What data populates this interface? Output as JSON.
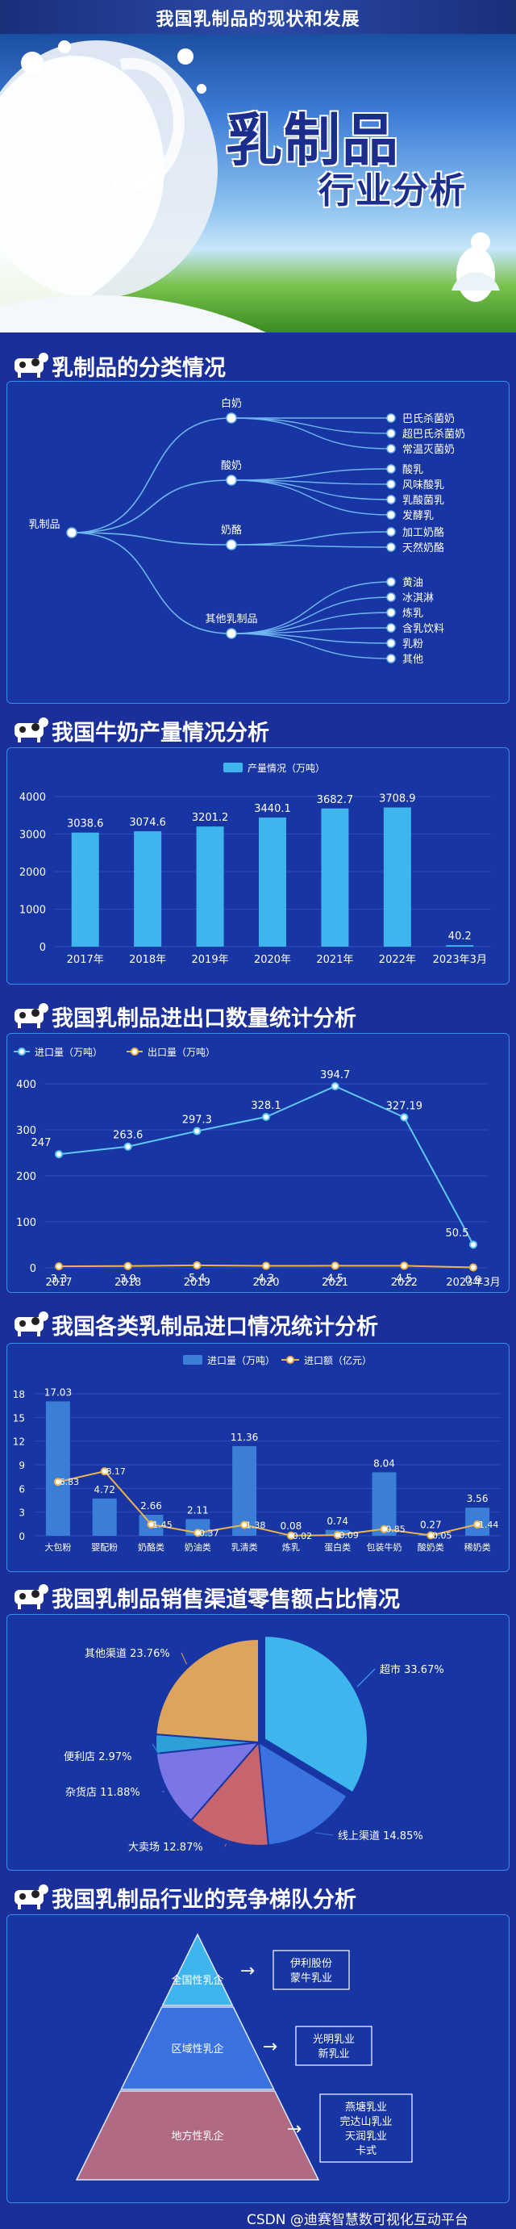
{
  "header": {
    "title": "我国乳制品的现状和发展",
    "big_title": "乳制品",
    "sub_title": "行业分析"
  },
  "sections": {
    "s1": "乳制品的分类情况",
    "s2": "我国牛奶产量情况分析",
    "s3": "我国乳制品进出口数量统计分析",
    "s4": "我国各类乳制品进口情况统计分析",
    "s5": "我国乳制品销售渠道零售额占比情况",
    "s6": "我国乳制品行业的竞争梯队分析"
  },
  "tree": {
    "root": "乳制品",
    "groups": [
      {
        "name": "白奶",
        "children": [
          "巴氏杀菌奶",
          "超巴氏杀菌奶",
          "常温灭菌奶"
        ]
      },
      {
        "name": "酸奶",
        "children": [
          "酸乳",
          "风味酸乳",
          "乳酸菌乳",
          "发酵乳"
        ]
      },
      {
        "name": "奶酪",
        "children": [
          "加工奶酪",
          "天然奶酪"
        ]
      },
      {
        "name": "其他乳制品",
        "children": [
          "黄油",
          "冰淇淋",
          "炼乳",
          "含乳饮料",
          "乳粉",
          "其他"
        ]
      }
    ]
  },
  "chart_data": [
    {
      "type": "bar",
      "legend": [
        "产量情况（万吨）"
      ],
      "categories": [
        "2017年",
        "2018年",
        "2019年",
        "2020年",
        "2021年",
        "2022年",
        "2023年3月"
      ],
      "values": [
        3038.6,
        3074.6,
        3201.2,
        3440.1,
        3682.7,
        3708.9,
        40.2
      ],
      "ylim": [
        0,
        4000
      ],
      "yticks": [
        0,
        1000,
        2000,
        3000,
        4000
      ],
      "colors": {
        "bar": "#3fb5ee"
      }
    },
    {
      "type": "line",
      "categories": [
        "2017",
        "2018",
        "2019",
        "2020",
        "2021",
        "2022",
        "2023年3月"
      ],
      "series": [
        {
          "name": "进口量（万吨）",
          "values": [
            247,
            263.6,
            297.3,
            328.1,
            394.7,
            327.19,
            50.5
          ],
          "color": "#5ec8f2"
        },
        {
          "name": "出口量（万吨）",
          "values": [
            3.3,
            3.9,
            5.4,
            4.3,
            4.5,
            4.5,
            0.9
          ],
          "color": "#f0b34a"
        }
      ],
      "ylim": [
        0,
        400
      ],
      "yticks": [
        0,
        100,
        200,
        300,
        400
      ]
    },
    {
      "type": "bar",
      "categories": [
        "大包粉",
        "婴配粉",
        "奶酪类",
        "奶油类",
        "乳清类",
        "炼乳",
        "蛋白类",
        "包装牛奶",
        "酸奶类",
        "稀奶类"
      ],
      "series": [
        {
          "name": "进口量（万吨）",
          "values": [
            17.03,
            4.72,
            2.66,
            2.11,
            11.36,
            0.08,
            0.74,
            8.04,
            0.27,
            3.56
          ],
          "color": "#3a7ed8"
        },
        {
          "name": "进口额（亿元）",
          "values": [
            6.83,
            8.17,
            1.45,
            0.37,
            1.38,
            0.02,
            0.09,
            0.85,
            0.05,
            1.44
          ],
          "color": "#f0b34a"
        }
      ],
      "ylim": [
        0,
        18
      ],
      "yticks": [
        0,
        3,
        6,
        9,
        12,
        15,
        18
      ]
    },
    {
      "type": "pie",
      "slices": [
        {
          "label": "超市",
          "value": 33.67,
          "color": "#3fb5ee"
        },
        {
          "label": "线上渠道",
          "value": 14.85,
          "color": "#3a72e0"
        },
        {
          "label": "大卖场",
          "value": 12.87,
          "color": "#c8646e"
        },
        {
          "label": "杂货店",
          "value": 11.88,
          "color": "#7a76e6"
        },
        {
          "label": "便利店",
          "value": 2.97,
          "color": "#2f9fd8"
        },
        {
          "label": "其他渠道",
          "value": 23.76,
          "color": "#dea35c"
        }
      ],
      "labels": [
        "超市 33.67%",
        "线上渠道 14.85%",
        "大卖场 12.87%",
        "杂货店 11.88%",
        "便利店 2.97%",
        "其他渠道 23.76%"
      ]
    }
  ],
  "pyramid": {
    "tiers": [
      {
        "name": "全国性乳企",
        "companies": [
          "伊利股份",
          "蒙牛乳业"
        ],
        "color": "#3fb5ee"
      },
      {
        "name": "区域性乳企",
        "companies": [
          "光明乳业",
          "新乳业"
        ],
        "color": "#3a72e0"
      },
      {
        "name": "地方性乳企",
        "companies": [
          "燕塘乳业",
          "完达山乳业",
          "天润乳业",
          "卡式"
        ],
        "color": "#b06a84"
      }
    ],
    "arrow": "→"
  },
  "footer": "CSDN @迪赛智慧数可视化互动平台"
}
